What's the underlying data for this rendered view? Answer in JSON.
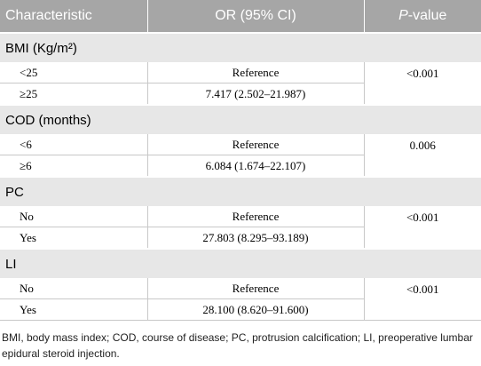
{
  "header": {
    "columns": [
      {
        "text": "Characteristic"
      },
      {
        "text": "OR (95% CI)"
      },
      {
        "italic": "P",
        "text": "-value"
      }
    ]
  },
  "sections": [
    {
      "title": "BMI (Kg/m²)",
      "p": "<0.001",
      "rows": [
        {
          "label": "<25",
          "or": "Reference"
        },
        {
          "label": "≥25",
          "or": "7.417 (2.502–21.987)"
        }
      ]
    },
    {
      "title": "COD (months)",
      "p": "0.006",
      "rows": [
        {
          "label": "<6",
          "or": "Reference"
        },
        {
          "label": "≥6",
          "or": "6.084 (1.674–22.107)"
        }
      ]
    },
    {
      "title": "PC",
      "p": "<0.001",
      "rows": [
        {
          "label": "No",
          "or": "Reference"
        },
        {
          "label": "Yes",
          "or": "27.803 (8.295–93.189)"
        }
      ]
    },
    {
      "title": "LI",
      "p": "<0.001",
      "rows": [
        {
          "label": "No",
          "or": "Reference"
        },
        {
          "label": "Yes",
          "or": "28.100 (8.620–91.600)"
        }
      ]
    }
  ],
  "footnote": "BMI, body mass index; COD, course of disease; PC, protrusion calcification; LI, preoperative lumbar epidural steroid injection."
}
